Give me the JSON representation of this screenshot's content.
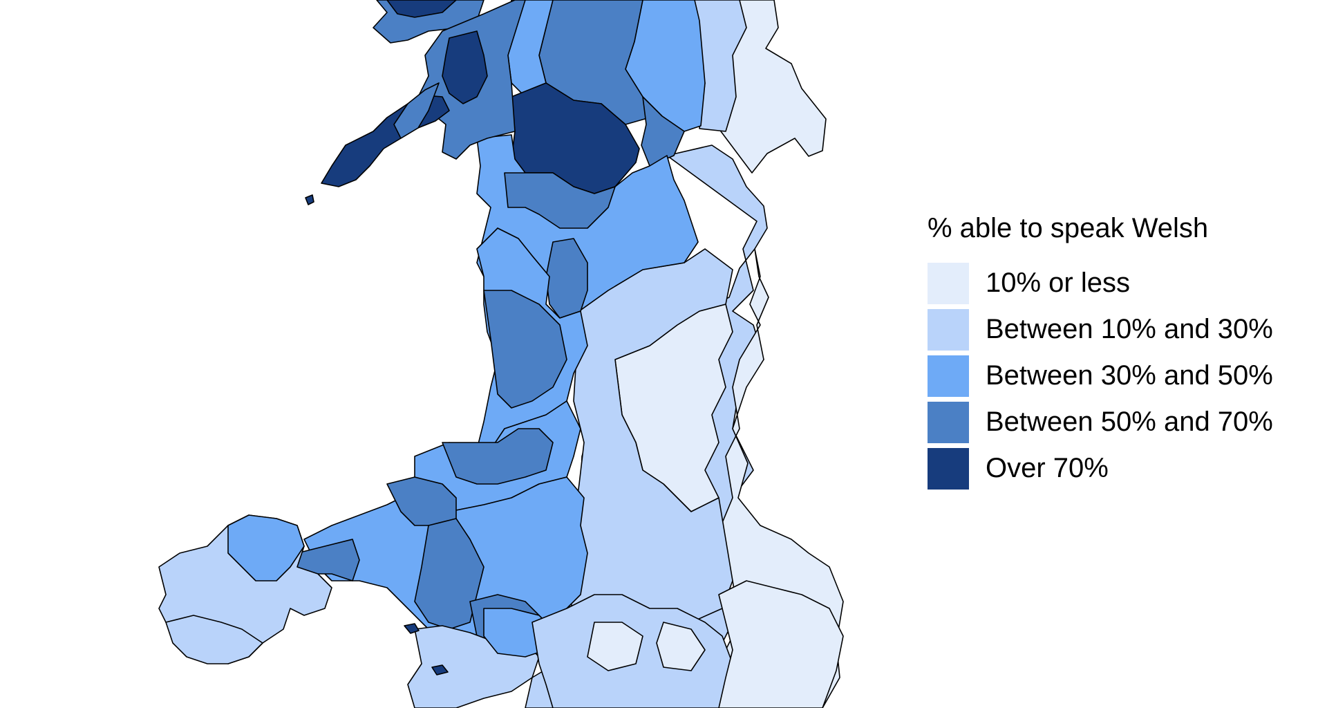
{
  "colors": {
    "band_1": "#e3edfb",
    "band_2": "#b9d3fa",
    "band_3": "#6eaaf6",
    "band_4": "#4b80c5",
    "band_5": "#173c7d",
    "border": "#000000"
  },
  "legend": {
    "title": "% able to speak Welsh",
    "items": [
      {
        "label": "10% or less",
        "color": "#e3edfb"
      },
      {
        "label": "Between 10% and 30%",
        "color": "#b9d3fa"
      },
      {
        "label": "Between 30% and 50%",
        "color": "#6eaaf6"
      },
      {
        "label": "Between 50% and 70%",
        "color": "#4b80c5"
      },
      {
        "label": "Over 70%",
        "color": "#173c7d"
      }
    ]
  }
}
